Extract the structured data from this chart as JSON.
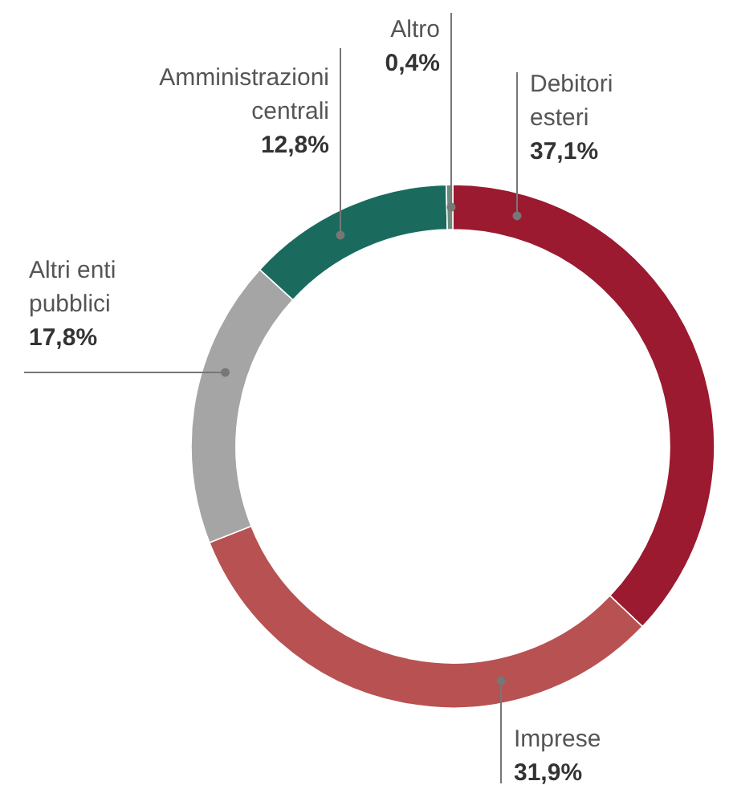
{
  "chart_data": {
    "type": "donut",
    "categories": [
      "Debitori\nesteri",
      "Imprese",
      "Altri enti\npubblici",
      "Amministrazioni\ncentrali",
      "Altro"
    ],
    "values": [
      37.1,
      31.9,
      17.8,
      12.8,
      0.4
    ],
    "value_labels": [
      "37,1%",
      "31,9%",
      "17,8%",
      "12,8%",
      "0,4%"
    ],
    "colors": [
      "#9b1a2f",
      "#b85152",
      "#a5a5a5",
      "#1a6b5e",
      "#6f8a7e"
    ]
  }
}
